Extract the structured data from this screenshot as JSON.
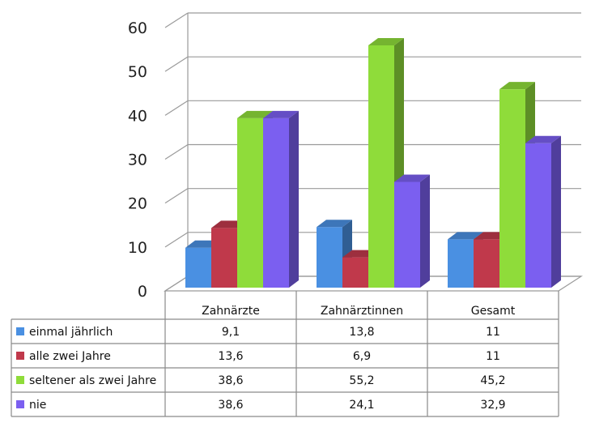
{
  "chart_data": {
    "type": "bar",
    "title": "",
    "xlabel": "",
    "ylabel": "",
    "ylim": [
      0,
      60
    ],
    "yticks": [
      "0",
      "10",
      "20",
      "30",
      "40",
      "50",
      "60"
    ],
    "grid": true,
    "legend": "data-table",
    "categories": [
      "Zahnärzte",
      "Zahnärztinnen",
      "Gesamt"
    ],
    "series": [
      {
        "name": "einmal jährlich",
        "values": [
          9.1,
          13.8,
          11
        ],
        "labels": [
          "9,1",
          "13,8",
          "11"
        ],
        "color": "#4a90e2"
      },
      {
        "name": "alle zwei Jahre",
        "values": [
          13.6,
          6.9,
          11
        ],
        "labels": [
          "13,6",
          "6,9",
          "11"
        ],
        "color": "#c0394b"
      },
      {
        "name": "seltener als zwei Jahre",
        "values": [
          38.6,
          55.2,
          45.2
        ],
        "labels": [
          "38,6",
          "55,2",
          "45,2"
        ],
        "color": "#8fdc3a"
      },
      {
        "name": "nie",
        "values": [
          38.6,
          24.1,
          32.9
        ],
        "labels": [
          "38,6",
          "24,1",
          "32,9"
        ],
        "color": "#7b5ff0"
      }
    ]
  }
}
